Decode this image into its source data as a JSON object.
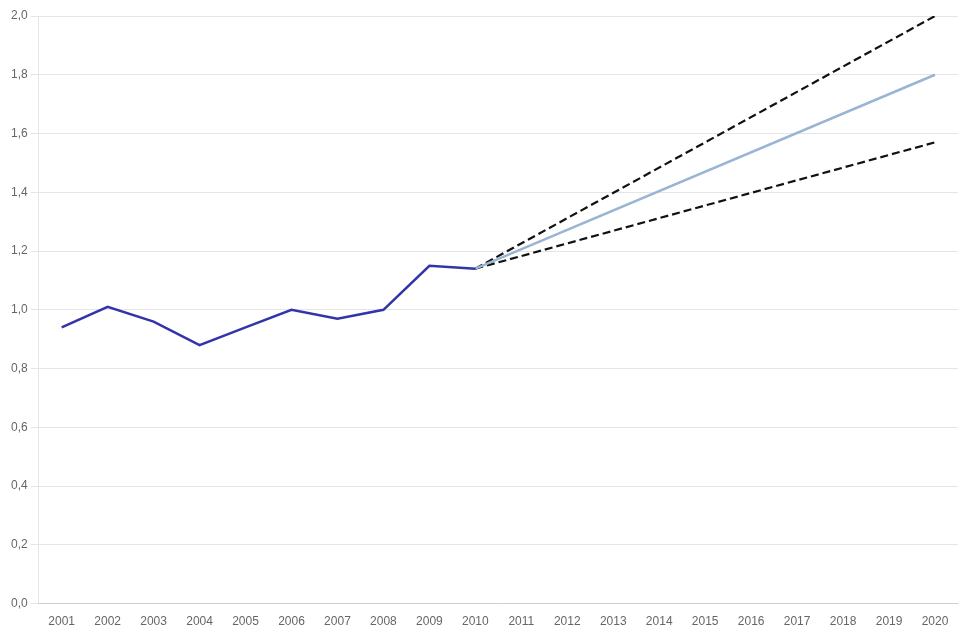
{
  "chart_data": {
    "type": "line",
    "xlim": [
      2000.5,
      2020.5
    ],
    "xticks": [
      2001,
      2002,
      2003,
      2004,
      2005,
      2006,
      2007,
      2008,
      2009,
      2010,
      2011,
      2012,
      2013,
      2014,
      2015,
      2016,
      2017,
      2018,
      2019,
      2020
    ],
    "ylim": [
      0.0,
      2.0
    ],
    "yticks": [
      {
        "value": 0.0,
        "label": "0,0"
      },
      {
        "value": 0.2,
        "label": "0,2"
      },
      {
        "value": 0.4,
        "label": "0,4"
      },
      {
        "value": 0.6,
        "label": "0,6"
      },
      {
        "value": 0.8,
        "label": "0,8"
      },
      {
        "value": 1.0,
        "label": "1,0"
      },
      {
        "value": 1.2,
        "label": "1,2"
      },
      {
        "value": 1.4,
        "label": "1,4"
      },
      {
        "value": 1.6,
        "label": "1,6"
      },
      {
        "value": 1.8,
        "label": "1,8"
      },
      {
        "value": 2.0,
        "label": "2,0"
      }
    ],
    "grid": true,
    "series": [
      {
        "color": "#3333aa",
        "line_style": "solid",
        "x": [
          2001,
          2002,
          2003,
          2004,
          2005,
          2006,
          2007,
          2008,
          2009,
          2010
        ],
        "values": [
          0.94,
          1.01,
          0.96,
          0.88,
          0.94,
          1.0,
          0.97,
          1.0,
          1.15,
          1.14
        ]
      },
      {
        "color": "#9ab4d4",
        "line_style": "solid",
        "x": [
          2010,
          2020
        ],
        "values": [
          1.14,
          1.8
        ]
      },
      {
        "color": "#111111",
        "line_style": "dashed",
        "x": [
          2010,
          2020
        ],
        "values": [
          1.14,
          2.0
        ]
      },
      {
        "color": "#111111",
        "line_style": "dashed",
        "x": [
          2010,
          2020
        ],
        "values": [
          1.14,
          1.57
        ]
      }
    ]
  }
}
